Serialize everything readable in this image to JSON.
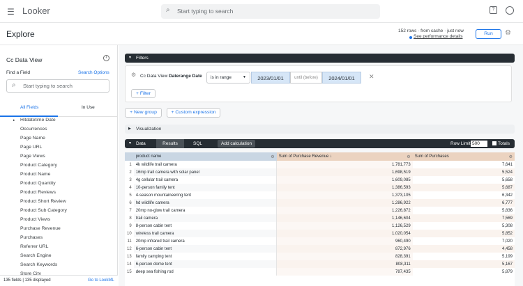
{
  "app": {
    "logo": "Looker",
    "search_placeholder": "Start typing to search"
  },
  "header": {
    "title": "Explore",
    "status": "152 rows · from cache · just now",
    "perf_link": "See performance details",
    "run": "Run"
  },
  "sidebar": {
    "title": "Cc Data View",
    "find_label": "Find a Field",
    "search_options": "Search Options",
    "search_placeholder": "Start typing to search",
    "tabs": [
      "All Fields",
      "In Use"
    ],
    "fields": [
      "Hitdatetime Date",
      "Occurrences",
      "Page Name",
      "Page URL",
      "Page Views",
      "Product Category",
      "Product Name",
      "Product Quantity",
      "Product Reviews",
      "Product Short Review",
      "Product Sub Category",
      "Product Views",
      "Purchase Revenue",
      "Purchases",
      "Referrer URL",
      "Search Engine",
      "Search Keywords",
      "Store City"
    ],
    "footer_count": "135 fields | 135 displayed",
    "go_lookml": "Go to LookML"
  },
  "filters": {
    "label": "Filters",
    "view": "Cc Data View",
    "field": "Daterange Date",
    "operator": "is in range",
    "from": "2023/01/01",
    "until": "until (before)",
    "to": "2024/01/01",
    "add_filter": "Filter",
    "new_group": "New group",
    "custom_expression": "Custom expression"
  },
  "visualization": {
    "label": "Visualization"
  },
  "data": {
    "label": "Data",
    "tabs": [
      "Results",
      "SQL"
    ],
    "add_calc": "Add calculation",
    "row_limit_label": "Row Limit",
    "row_limit": "500",
    "totals": "Totals",
    "columns": [
      "product name",
      "Sum of Purchase Revenue ↓",
      "Sum of Purchases"
    ],
    "rows": [
      [
        "1",
        "4k wildlife trail camera",
        "1,781,773",
        "7,641"
      ],
      [
        "2",
        "16mp trail camera with solar panel",
        "1,698,519",
        "5,524"
      ],
      [
        "3",
        "4g cellular trail camera",
        "1,609,085",
        "5,658"
      ],
      [
        "4",
        "10-person family tent",
        "1,386,593",
        "5,687"
      ],
      [
        "5",
        "4-season mountaineering tent",
        "1,373,105",
        "6,342"
      ],
      [
        "6",
        "hd wildlife camera",
        "1,286,922",
        "6,777"
      ],
      [
        "7",
        "20mp no-glow trail camera",
        "1,226,872",
        "5,836"
      ],
      [
        "8",
        "trail camera",
        "1,146,604",
        "7,569"
      ],
      [
        "9",
        "8-person cabin tent",
        "1,126,529",
        "5,308"
      ],
      [
        "10",
        "wireless trail camera",
        "1,020,054",
        "5,852"
      ],
      [
        "11",
        "20mp infrared trail camera",
        "960,490",
        "7,020"
      ],
      [
        "12",
        "6-person cabin tent",
        "872,976",
        "4,458"
      ],
      [
        "13",
        "family camping tent",
        "828,391",
        "5,199"
      ],
      [
        "14",
        "6-person dome tent",
        "808,311",
        "5,167"
      ],
      [
        "15",
        "deep sea fishing rod",
        "787,435",
        "5,879"
      ]
    ]
  }
}
